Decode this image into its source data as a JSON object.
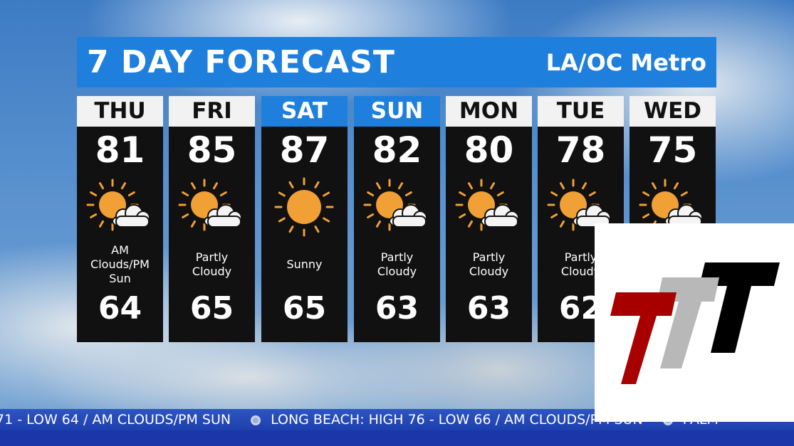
{
  "header": {
    "title": "7 DAY FORECAST",
    "region": "LA/OC Metro"
  },
  "days": [
    {
      "day": "THU",
      "high": "81",
      "icon": "sun-cloud-icon",
      "cond": [
        "AM",
        "Clouds/PM",
        "Sun"
      ],
      "low": "64",
      "weekend": false
    },
    {
      "day": "FRI",
      "high": "85",
      "icon": "sun-cloud-icon",
      "cond": [
        "Partly",
        "Cloudy"
      ],
      "low": "65",
      "weekend": false
    },
    {
      "day": "SAT",
      "high": "87",
      "icon": "sun-icon",
      "cond": [
        "Sunny"
      ],
      "low": "65",
      "weekend": true
    },
    {
      "day": "SUN",
      "high": "82",
      "icon": "sun-cloud-icon",
      "cond": [
        "Partly",
        "Cloudy"
      ],
      "low": "63",
      "weekend": true
    },
    {
      "day": "MON",
      "high": "80",
      "icon": "sun-cloud-icon",
      "cond": [
        "Partly",
        "Cloudy"
      ],
      "low": "63",
      "weekend": false
    },
    {
      "day": "TUE",
      "high": "78",
      "icon": "sun-cloud-icon",
      "cond": [
        "Partly",
        "Cloudy"
      ],
      "low": "62",
      "weekend": false
    },
    {
      "day": "WED",
      "high": "75",
      "icon": "sun-cloud-icon",
      "cond": [],
      "low": "",
      "weekend": false
    }
  ],
  "ticker": {
    "items": [
      "71 - LOW 64 / AM CLOUDS/PM SUN",
      "LONG BEACH: HIGH 76 - LOW 66 / AM CLOUDS/PM SUN",
      "PALM"
    ]
  },
  "colors": {
    "accent": "#1f7fdc",
    "sun": "#f0a035",
    "panel": "#111111"
  },
  "logo": {
    "text": "TTT",
    "colors": [
      "#a80000",
      "#b8b8b8",
      "#000000"
    ]
  }
}
